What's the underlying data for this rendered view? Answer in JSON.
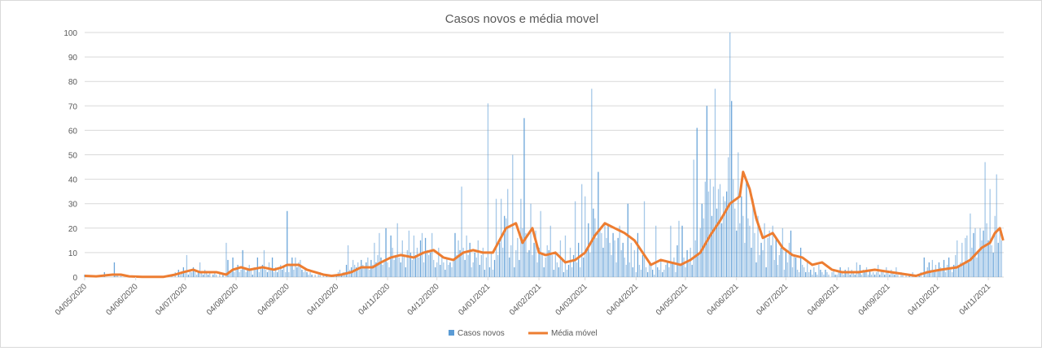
{
  "chart_data": {
    "type": "bar+line",
    "title": "Casos novos e média movel",
    "xlabel": "",
    "ylabel": "",
    "ylim": [
      0,
      100
    ],
    "yticks": [
      "0",
      "10",
      "20",
      "30",
      "40",
      "50",
      "60",
      "70",
      "80",
      "90",
      "100"
    ],
    "start_date": "04/05/2020",
    "xtick_labels": [
      "04/05/2020",
      "04/06/2020",
      "04/07/2020",
      "04/08/2020",
      "04/09/2020",
      "04/10/2020",
      "04/11/2020",
      "04/12/2020",
      "04/01/2021",
      "04/02/2021",
      "04/03/2021",
      "04/04/2021",
      "04/05/2021",
      "04/06/2021",
      "04/07/2021",
      "04/08/2021",
      "04/09/2021",
      "04/10/2021",
      "04/11/2021"
    ],
    "xtick_days": [
      0,
      31,
      61,
      92,
      123,
      153,
      184,
      214,
      245,
      276,
      304,
      335,
      365,
      396,
      426,
      457,
      488,
      518,
      549
    ],
    "grid": true,
    "legend_position": "bottom",
    "series": [
      {
        "name": "Casos novos",
        "type": "bar",
        "color": "#5b9bd5",
        "values": [
          1,
          0,
          0,
          0,
          0,
          0,
          0,
          0,
          0,
          0,
          0,
          0,
          2,
          0,
          0,
          0,
          0,
          0,
          6,
          1,
          1,
          0,
          1,
          0,
          0,
          0,
          0,
          0,
          0,
          0,
          0,
          0,
          0,
          0,
          0,
          0,
          0,
          0,
          0,
          0,
          0,
          0,
          0,
          0,
          0,
          0,
          0,
          0,
          0,
          0,
          0,
          1,
          0,
          1,
          0,
          2,
          0,
          3,
          1,
          2,
          4,
          2,
          9,
          1,
          3,
          2,
          4,
          3,
          1,
          2,
          6,
          2,
          1,
          3,
          2,
          1,
          2,
          0,
          1,
          2,
          1,
          0,
          2,
          0,
          1,
          0,
          14,
          7,
          2,
          3,
          8,
          2,
          3,
          5,
          2,
          3,
          11,
          4,
          2,
          3,
          5,
          3,
          1,
          4,
          3,
          8,
          2,
          4,
          5,
          11,
          3,
          2,
          6,
          3,
          8,
          2,
          4,
          2,
          3,
          5,
          3,
          4,
          2,
          27,
          2,
          5,
          8,
          3,
          8,
          4,
          6,
          7,
          3,
          2,
          3,
          2,
          1,
          2,
          1,
          0,
          1,
          0,
          1,
          2,
          0,
          1,
          0,
          1,
          0,
          0,
          0,
          1,
          0,
          1,
          2,
          3,
          1,
          2,
          2,
          5,
          13,
          3,
          4,
          7,
          5,
          4,
          6,
          4,
          7,
          5,
          4,
          6,
          8,
          3,
          7,
          5,
          14,
          6,
          9,
          18,
          8,
          5,
          7,
          20,
          6,
          4,
          17,
          12,
          7,
          9,
          22,
          8,
          6,
          15,
          9,
          4,
          11,
          19,
          10,
          7,
          17,
          9,
          12,
          8,
          15,
          18,
          6,
          16,
          11,
          9,
          10,
          18,
          7,
          4,
          6,
          12,
          5,
          9,
          6,
          3,
          8,
          5,
          6,
          4,
          7,
          18,
          9,
          15,
          11,
          37,
          12,
          7,
          17,
          9,
          14,
          4,
          6,
          10,
          8,
          15,
          5,
          9,
          12,
          3,
          8,
          71,
          4,
          10,
          3,
          7,
          32,
          9,
          14,
          32,
          12,
          25,
          24,
          36,
          8,
          13,
          50,
          4,
          11,
          16,
          7,
          32,
          20,
          65,
          18,
          10,
          11,
          30,
          9,
          14,
          19,
          6,
          12,
          27,
          10,
          4,
          8,
          13,
          11,
          21,
          9,
          3,
          10,
          6,
          4,
          15,
          8,
          2,
          17,
          3,
          5,
          12,
          4,
          9,
          31,
          6,
          14,
          4,
          38,
          8,
          33,
          12,
          22,
          10,
          77,
          28,
          24,
          16,
          43,
          20,
          18,
          12,
          22,
          16,
          21,
          14,
          9,
          18,
          15,
          6,
          16,
          21,
          11,
          14,
          8,
          5,
          30,
          6,
          14,
          4,
          11,
          2,
          18,
          5,
          3,
          9,
          31,
          4,
          2,
          6,
          5,
          3,
          1,
          21,
          4,
          3,
          7,
          2,
          3,
          5,
          6,
          4,
          21,
          6,
          8,
          2,
          13,
          23,
          5,
          21,
          8,
          4,
          11,
          6,
          12,
          5,
          48,
          15,
          61,
          10,
          20,
          30,
          24,
          39,
          70,
          35,
          40,
          25,
          37,
          77,
          28,
          36,
          38,
          22,
          33,
          31,
          35,
          49,
          100,
          72,
          40,
          28,
          19,
          51,
          22,
          33,
          25,
          14,
          39,
          24,
          21,
          12,
          32,
          18,
          6,
          25,
          9,
          14,
          11,
          22,
          4,
          16,
          19,
          13,
          21,
          7,
          16,
          5,
          9,
          12,
          20,
          3,
          11,
          6,
          14,
          19,
          4,
          9,
          8,
          3,
          2,
          12,
          5,
          4,
          2,
          6,
          2,
          3,
          1,
          4,
          2,
          1,
          5,
          3,
          2,
          1,
          3,
          2,
          1,
          0,
          2,
          3,
          1,
          1,
          2,
          4,
          2,
          1,
          3,
          2,
          4,
          1,
          3,
          2,
          1,
          6,
          2,
          5,
          1,
          3,
          2,
          4,
          1,
          3,
          1,
          2,
          1,
          2,
          5,
          1,
          3,
          2,
          1,
          4,
          2,
          1,
          3,
          2,
          1,
          4,
          1,
          0,
          2,
          1,
          0,
          1,
          0,
          1,
          0,
          2,
          0,
          1,
          0,
          1,
          2,
          0,
          8,
          2,
          4,
          6,
          3,
          7,
          2,
          5,
          3,
          6,
          4,
          3,
          7,
          2,
          5,
          8,
          3,
          2,
          5,
          9,
          15,
          4,
          6,
          14,
          5,
          16,
          17,
          6,
          26,
          12,
          18,
          20,
          8,
          11,
          20,
          15,
          19,
          47,
          22,
          15,
          36,
          13,
          10,
          25,
          42,
          14,
          20,
          15
        ]
      },
      {
        "name": "Média móvel",
        "type": "line",
        "color": "#ed7d31",
        "points_day_value": [
          [
            0,
            0.5
          ],
          [
            7,
            0.3
          ],
          [
            17,
            1
          ],
          [
            22,
            1
          ],
          [
            27,
            0.3
          ],
          [
            35,
            0.1
          ],
          [
            48,
            0.1
          ],
          [
            55,
            1
          ],
          [
            60,
            2
          ],
          [
            66,
            3
          ],
          [
            70,
            2
          ],
          [
            80,
            2
          ],
          [
            86,
            1
          ],
          [
            90,
            3
          ],
          [
            95,
            4
          ],
          [
            100,
            3
          ],
          [
            108,
            4
          ],
          [
            115,
            3
          ],
          [
            120,
            4
          ],
          [
            123,
            5
          ],
          [
            130,
            5
          ],
          [
            135,
            3
          ],
          [
            140,
            2
          ],
          [
            145,
            1
          ],
          [
            150,
            0.5
          ],
          [
            156,
            1
          ],
          [
            162,
            2
          ],
          [
            168,
            4
          ],
          [
            175,
            4
          ],
          [
            180,
            6
          ],
          [
            186,
            8
          ],
          [
            192,
            9
          ],
          [
            200,
            8
          ],
          [
            206,
            10
          ],
          [
            212,
            11
          ],
          [
            218,
            8
          ],
          [
            224,
            7
          ],
          [
            230,
            10
          ],
          [
            236,
            11
          ],
          [
            242,
            10
          ],
          [
            248,
            10
          ],
          [
            252,
            15
          ],
          [
            256,
            20
          ],
          [
            262,
            22
          ],
          [
            266,
            14
          ],
          [
            272,
            20
          ],
          [
            276,
            10
          ],
          [
            280,
            9
          ],
          [
            286,
            10
          ],
          [
            292,
            6
          ],
          [
            298,
            7
          ],
          [
            304,
            10
          ],
          [
            310,
            17
          ],
          [
            316,
            22
          ],
          [
            322,
            20
          ],
          [
            328,
            18
          ],
          [
            334,
            15
          ],
          [
            340,
            9
          ],
          [
            344,
            5
          ],
          [
            350,
            7
          ],
          [
            356,
            6
          ],
          [
            362,
            5
          ],
          [
            368,
            7
          ],
          [
            374,
            10
          ],
          [
            380,
            17
          ],
          [
            386,
            23
          ],
          [
            392,
            30
          ],
          [
            398,
            33
          ],
          [
            400,
            43
          ],
          [
            404,
            36
          ],
          [
            408,
            24
          ],
          [
            412,
            16
          ],
          [
            418,
            18
          ],
          [
            424,
            12
          ],
          [
            430,
            9
          ],
          [
            436,
            8
          ],
          [
            442,
            5
          ],
          [
            448,
            6
          ],
          [
            454,
            3
          ],
          [
            460,
            2
          ],
          [
            470,
            2
          ],
          [
            480,
            3
          ],
          [
            490,
            2
          ],
          [
            500,
            1
          ],
          [
            505,
            0.5
          ],
          [
            512,
            2
          ],
          [
            520,
            3
          ],
          [
            530,
            4
          ],
          [
            538,
            7
          ],
          [
            545,
            12
          ],
          [
            550,
            14
          ],
          [
            553,
            18
          ],
          [
            556,
            20
          ],
          [
            558,
            15
          ]
        ]
      }
    ]
  }
}
